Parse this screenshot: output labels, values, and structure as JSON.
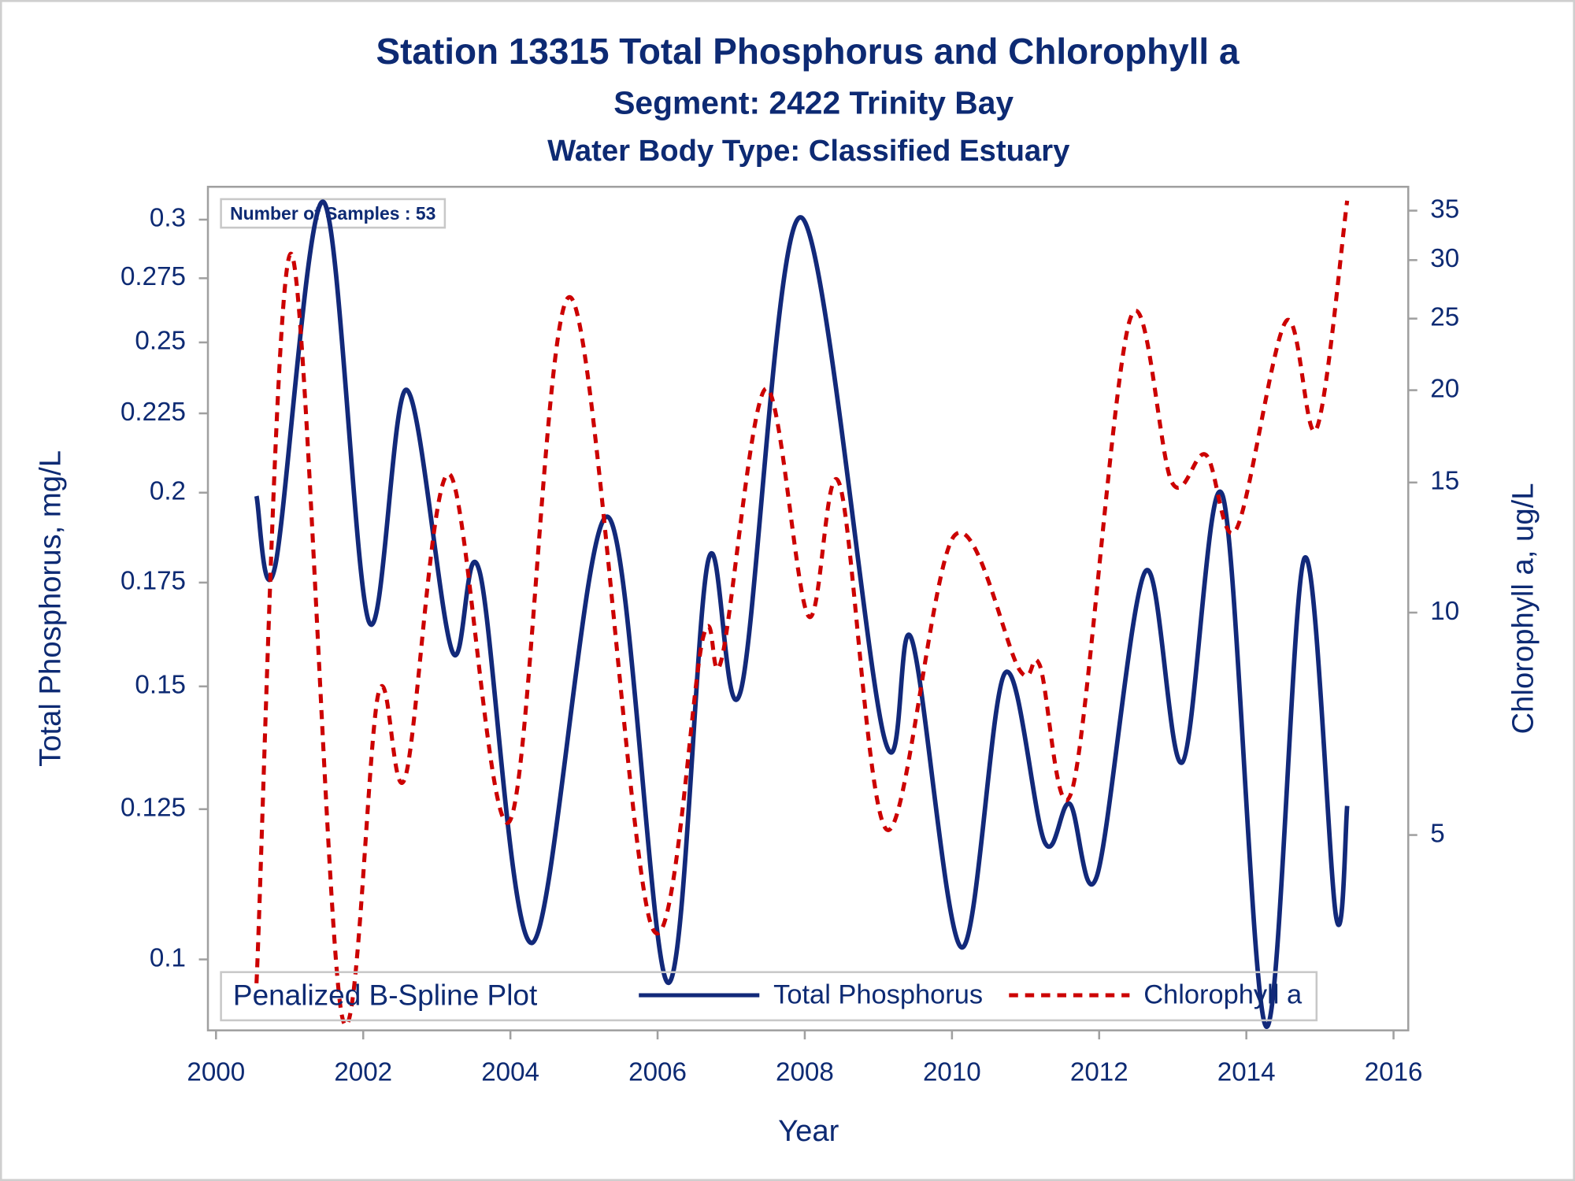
{
  "chart_data": {
    "type": "line",
    "title": "Station 13315  Total Phosphorus and Chlorophyll a",
    "subtitle": "Segment: 2422  Trinity Bay",
    "subtitle2": "Water Body Type: Classified Estuary",
    "annotation": "Number of Samples : 53",
    "legend_title": "Penalized B-Spline Plot",
    "legend": "bottom",
    "x_label": "Year",
    "y_label": "Total Phosphorus, mg/L",
    "y2_label": "Chlorophyll a, ug/L",
    "xlim": [
      1999.89,
      2016.2
    ],
    "xticks": [
      2000,
      2002,
      2004,
      2006,
      2008,
      2010,
      2012,
      2014,
      2016
    ],
    "ylim": [
      0.09,
      0.315
    ],
    "yticks": [
      0.1,
      0.125,
      0.15,
      0.175,
      0.2,
      0.225,
      0.25,
      0.275,
      0.3
    ],
    "y_log": true,
    "y2lim": [
      2.72,
      37.7
    ],
    "y2ticks": [
      5,
      10,
      15,
      20,
      25,
      30,
      35
    ],
    "y2_log": true,
    "series": [
      {
        "name": "Total Phosphorus",
        "color": "#12297a",
        "dash": false,
        "x": [
          2000.55,
          2000.8,
          2001.46,
          2002.08,
          2002.59,
          2003.21,
          2003.58,
          2004.3,
          2005.32,
          2006.14,
          2006.69,
          2007.13,
          2007.95,
          2009.08,
          2009.45,
          2010.13,
          2010.72,
          2011.26,
          2011.6,
          2011.97,
          2012.63,
          2013.13,
          2013.68,
          2014.27,
          2014.79,
          2015.22,
          2015.37
        ],
        "values": [
          0.199,
          0.179,
          0.308,
          0.165,
          0.233,
          0.158,
          0.178,
          0.1025,
          0.193,
          0.0966,
          0.181,
          0.149,
          0.301,
          0.139,
          0.161,
          0.1018,
          0.153,
          0.119,
          0.126,
          0.1132,
          0.178,
          0.134,
          0.199,
          0.0905,
          0.1815,
          0.1065,
          0.1256
        ]
      },
      {
        "name": "Chlorophyll a",
        "color": "#cc0000",
        "dash": true,
        "axis": "y2",
        "x": [
          2000.55,
          2001.02,
          2001.71,
          2002.21,
          2002.57,
          2003.17,
          2003.99,
          2004.82,
          2005.92,
          2006.62,
          2006.87,
          2007.47,
          2008.05,
          2008.47,
          2009.12,
          2010.03,
          2010.92,
          2011.19,
          2011.64,
          2012.42,
          2012.99,
          2013.45,
          2013.86,
          2014.54,
          2014.95,
          2015.37
        ],
        "values": [
          3.15,
          30.6,
          2.85,
          7.8,
          5.98,
          15.4,
          5.22,
          26.7,
          3.76,
          9.27,
          8.65,
          20.1,
          9.89,
          14.95,
          5.08,
          12.7,
          8.36,
          8.5,
          5.79,
          24.95,
          15.0,
          16.35,
          12.95,
          24.8,
          17.7,
          36.1
        ]
      }
    ]
  }
}
